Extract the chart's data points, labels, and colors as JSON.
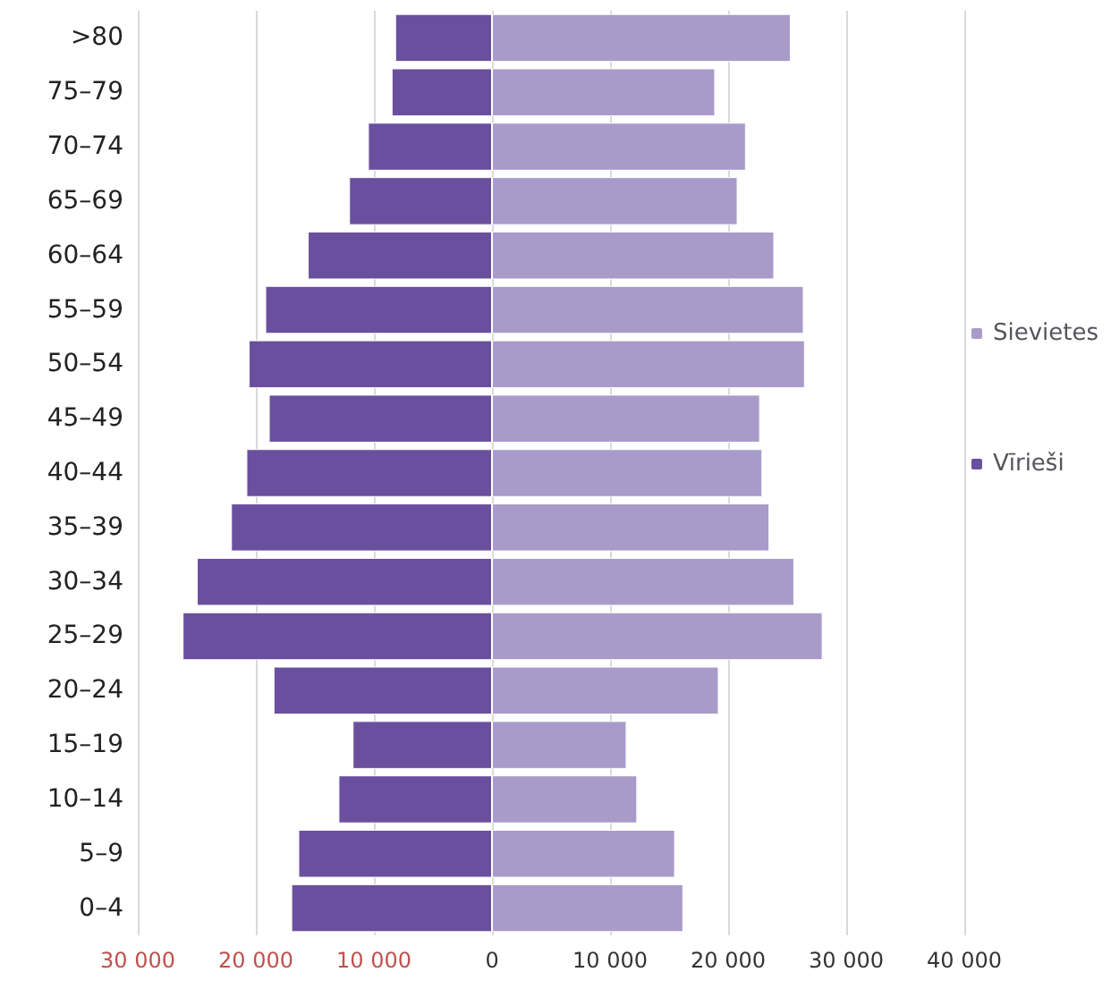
{
  "chart_data": {
    "type": "bar",
    "orientation": "horizontal",
    "categories": [
      ">80",
      "75–79",
      "70–74",
      "65–69",
      "60–64",
      "55–59",
      "50–54",
      "45–49",
      "40–44",
      "35–39",
      "30–34",
      "25–29",
      "20–24",
      "15–19",
      "10–14",
      "5–9",
      "0–4"
    ],
    "series": [
      {
        "name": "Sievietes",
        "color": "#a99bc9",
        "values": [
          25300,
          18900,
          21500,
          20800,
          23900,
          26400,
          26500,
          22700,
          22900,
          23500,
          25600,
          28000,
          19200,
          11400,
          12300,
          15500,
          16200
        ]
      },
      {
        "name": "Vīrieši",
        "color": "#6a4f9e",
        "values": [
          -8200,
          -8500,
          -10500,
          -12100,
          -15600,
          -19200,
          -20600,
          -18900,
          -20800,
          -22100,
          -25000,
          -26200,
          -18500,
          -11800,
          -13000,
          -16400,
          -17000
        ]
      }
    ],
    "xlim": [
      -30000,
      40000
    ],
    "xticks": [
      {
        "value": -30000,
        "label": "30 000"
      },
      {
        "value": -20000,
        "label": "20 000"
      },
      {
        "value": -10000,
        "label": "10 000"
      },
      {
        "value": 0,
        "label": "0"
      },
      {
        "value": 10000,
        "label": "10 000"
      },
      {
        "value": 20000,
        "label": "20 000"
      },
      {
        "value": 30000,
        "label": "30 000"
      },
      {
        "value": 40000,
        "label": "40 000"
      }
    ],
    "grid": "x",
    "legend": "right",
    "stacked": true
  }
}
